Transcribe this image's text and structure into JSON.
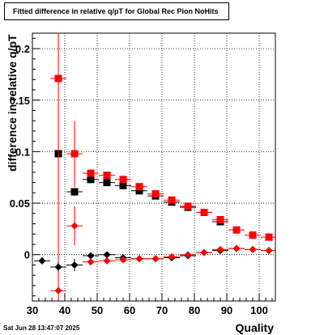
{
  "header": {
    "title": "Fitted difference in relative q/pT for Global Rec Pion NoHits",
    "timestamp": "Sat Jun 28 13:47:07 2025"
  },
  "chart_data": {
    "type": "scatter",
    "title": "Fitted difference in relative q/pT for Global Rec Pion NoHits",
    "xlabel": "Quality",
    "ylabel": "difference in relative q/pT",
    "xlim": [
      30,
      105
    ],
    "ylim": [
      -0.045,
      0.215
    ],
    "grid": true,
    "x_ticks": [
      "30",
      "40",
      "50",
      "60",
      "70",
      "80",
      "90",
      "100"
    ],
    "y_ticks": [
      "0",
      "0.05",
      "0.1",
      "0.15",
      "0.2"
    ],
    "series": [
      {
        "color": "#000000",
        "marker": "square",
        "points": [
          {
            "x": 38,
            "y": 0.098,
            "xerr": 0.8,
            "yerr": 0
          },
          {
            "x": 43,
            "y": 0.061,
            "xerr": 2.5,
            "yerr": 0.004
          },
          {
            "x": 48,
            "y": 0.073,
            "xerr": 2.5,
            "yerr": 0.003
          },
          {
            "x": 53,
            "y": 0.07,
            "xerr": 2.5,
            "yerr": 0.003
          },
          {
            "x": 58,
            "y": 0.067,
            "xerr": 2.5,
            "yerr": 0.002
          },
          {
            "x": 63,
            "y": 0.062,
            "xerr": 2.5,
            "yerr": 0.002
          },
          {
            "x": 68,
            "y": 0.057,
            "xerr": 2.5,
            "yerr": 0.002
          },
          {
            "x": 73,
            "y": 0.051,
            "xerr": 2.5,
            "yerr": 0.002
          },
          {
            "x": 78,
            "y": 0.046,
            "xerr": 2.5,
            "yerr": 0.002
          },
          {
            "x": 88,
            "y": 0.032,
            "xerr": 2.5,
            "yerr": 0.002
          }
        ]
      },
      {
        "color": "#ff0000",
        "marker": "square",
        "points": [
          {
            "x": 38,
            "y": 0.171,
            "xerr": 2.5,
            "yerr": 0.215
          },
          {
            "x": 43,
            "y": 0.098,
            "xerr": 2.5,
            "yerr": 0.032
          },
          {
            "x": 48,
            "y": 0.079,
            "xerr": 2.5,
            "yerr": 0.004
          },
          {
            "x": 53,
            "y": 0.077,
            "xerr": 2.5,
            "yerr": 0.003
          },
          {
            "x": 58,
            "y": 0.073,
            "xerr": 2.5,
            "yerr": 0.002
          },
          {
            "x": 63,
            "y": 0.066,
            "xerr": 2.5,
            "yerr": 0.002
          },
          {
            "x": 68,
            "y": 0.059,
            "xerr": 2.5,
            "yerr": 0.002
          },
          {
            "x": 73,
            "y": 0.053,
            "xerr": 2.5,
            "yerr": 0.002
          },
          {
            "x": 78,
            "y": 0.047,
            "xerr": 2.5,
            "yerr": 0.002
          },
          {
            "x": 83,
            "y": 0.041,
            "xerr": 2.5,
            "yerr": 0.002
          },
          {
            "x": 88,
            "y": 0.034,
            "xerr": 2.5,
            "yerr": 0.002
          },
          {
            "x": 93,
            "y": 0.024,
            "xerr": 2.5,
            "yerr": 0.002
          },
          {
            "x": 98,
            "y": 0.019,
            "xerr": 2.5,
            "yerr": 0.002
          },
          {
            "x": 103,
            "y": 0.017,
            "xerr": 2.5,
            "yerr": 0.002
          }
        ]
      },
      {
        "color": "#000000",
        "marker": "diamond",
        "points": [
          {
            "x": 33,
            "y": -0.006,
            "xerr": 2.5,
            "yerr": 0.002
          },
          {
            "x": 38,
            "y": -0.012,
            "xerr": 2.5,
            "yerr": 0.005
          },
          {
            "x": 43,
            "y": -0.01,
            "xerr": 2.5,
            "yerr": 0.006
          },
          {
            "x": 48,
            "y": -0.001,
            "xerr": 2.5,
            "yerr": 0.002
          },
          {
            "x": 53,
            "y": 0.0,
            "xerr": 2.5,
            "yerr": 0.002
          },
          {
            "x": 58,
            "y": -0.003,
            "xerr": 2.5,
            "yerr": 0.002
          },
          {
            "x": 63,
            "y": -0.004,
            "xerr": 2.5,
            "yerr": 0.002
          },
          {
            "x": 68,
            "y": -0.004,
            "xerr": 2.5,
            "yerr": 0.002
          },
          {
            "x": 73,
            "y": -0.003,
            "xerr": 2.5,
            "yerr": 0.002
          },
          {
            "x": 78,
            "y": -0.001,
            "xerr": 2.5,
            "yerr": 0.002
          },
          {
            "x": 83,
            "y": 0.002,
            "xerr": 2.5,
            "yerr": 0.002
          },
          {
            "x": 88,
            "y": 0.004,
            "xerr": 2.5,
            "yerr": 0.002
          },
          {
            "x": 93,
            "y": 0.006,
            "xerr": 2.5,
            "yerr": 0.002
          },
          {
            "x": 98,
            "y": 0.005,
            "xerr": 2.5,
            "yerr": 0.002
          },
          {
            "x": 103,
            "y": 0.004,
            "xerr": 2.5,
            "yerr": 0.002
          }
        ]
      },
      {
        "color": "#ff0000",
        "marker": "diamond",
        "points": [
          {
            "x": 38,
            "y": -0.035,
            "xerr": 2.5,
            "yerr": 0.005
          },
          {
            "x": 43,
            "y": 0.028,
            "xerr": 2.5,
            "yerr": 0.019
          },
          {
            "x": 48,
            "y": -0.007,
            "xerr": 2.5,
            "yerr": 0.002
          },
          {
            "x": 53,
            "y": -0.006,
            "xerr": 2.5,
            "yerr": 0.002
          },
          {
            "x": 58,
            "y": -0.005,
            "xerr": 2.5,
            "yerr": 0.002
          },
          {
            "x": 63,
            "y": -0.004,
            "xerr": 2.5,
            "yerr": 0.002
          },
          {
            "x": 68,
            "y": -0.004,
            "xerr": 2.5,
            "yerr": 0.002
          },
          {
            "x": 73,
            "y": -0.002,
            "xerr": 2.5,
            "yerr": 0.002
          },
          {
            "x": 78,
            "y": 0.0,
            "xerr": 2.5,
            "yerr": 0.002
          },
          {
            "x": 83,
            "y": 0.002,
            "xerr": 2.5,
            "yerr": 0.002
          },
          {
            "x": 88,
            "y": 0.005,
            "xerr": 2.5,
            "yerr": 0.002
          },
          {
            "x": 93,
            "y": 0.006,
            "xerr": 2.5,
            "yerr": 0.002
          },
          {
            "x": 98,
            "y": 0.005,
            "xerr": 2.5,
            "yerr": 0.002
          },
          {
            "x": 103,
            "y": 0.004,
            "xerr": 2.5,
            "yerr": 0.002
          }
        ]
      }
    ]
  }
}
